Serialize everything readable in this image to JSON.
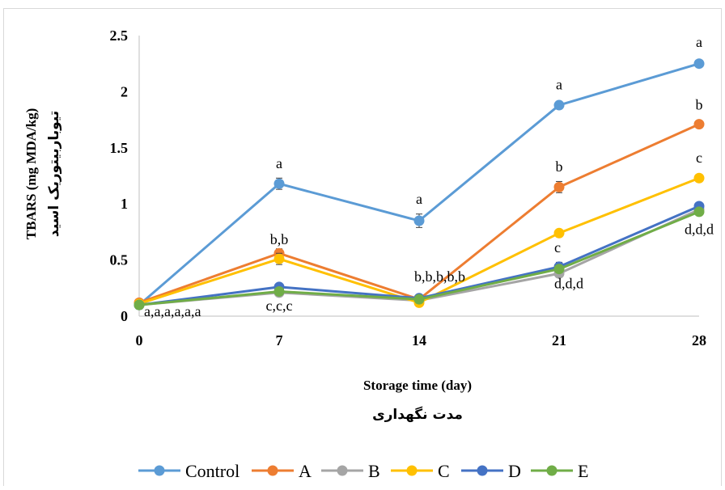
{
  "chart_data": {
    "type": "line",
    "x": [
      0,
      7,
      14,
      21,
      28
    ],
    "categories": [
      "0",
      "7",
      "14",
      "21",
      "28"
    ],
    "ylim": [
      0,
      2.5
    ],
    "yticks": [
      "0",
      "0.5",
      "1",
      "1.5",
      "2",
      "2.5"
    ],
    "xlabel": "Storage time (day)",
    "xlabel_fa": "مدت نگهداری",
    "ylabel": "TBARS (mg MDA/kg)",
    "ylabel_fa": "تیوباربیتوریک اسید",
    "grid": false,
    "legend_position": "bottom",
    "series": [
      {
        "name": "Control",
        "color": "#5B9BD5",
        "values": [
          0.1,
          1.18,
          0.85,
          1.88,
          2.25
        ],
        "errors": [
          0.02,
          0.05,
          0.06,
          0.03,
          0.02
        ]
      },
      {
        "name": "A",
        "color": "#ED7D31",
        "values": [
          0.12,
          0.56,
          0.15,
          1.15,
          1.71
        ],
        "errors": [
          0.02,
          0.04,
          0.03,
          0.05,
          0.02
        ]
      },
      {
        "name": "B",
        "color": "#A5A5A5",
        "values": [
          0.1,
          0.21,
          0.14,
          0.38,
          0.95
        ],
        "errors": [
          0.02,
          0.03,
          0.02,
          0.03,
          0.02
        ]
      },
      {
        "name": "C",
        "color": "#FFC000",
        "values": [
          0.11,
          0.51,
          0.12,
          0.74,
          1.23
        ],
        "errors": [
          0.02,
          0.05,
          0.03,
          0.03,
          0.02
        ]
      },
      {
        "name": "D",
        "color": "#4472C4",
        "values": [
          0.1,
          0.26,
          0.16,
          0.44,
          0.98
        ],
        "errors": [
          0.02,
          0.02,
          0.02,
          0.04,
          0.02
        ]
      },
      {
        "name": "E",
        "color": "#70AD47",
        "values": [
          0.1,
          0.22,
          0.15,
          0.42,
          0.93
        ],
        "errors": [
          0.02,
          0.02,
          0.02,
          0.03,
          0.02
        ]
      }
    ],
    "annotations": [
      {
        "text": "a,a,a,a,a,a",
        "x": 0,
        "y": 0.0,
        "anchor": "start"
      },
      {
        "text": "a",
        "x": 7,
        "y": 1.32,
        "anchor": "middle"
      },
      {
        "text": "b,b",
        "x": 7,
        "y": 0.64,
        "anchor": "middle"
      },
      {
        "text": "c,c,c",
        "x": 7,
        "y": 0.05,
        "anchor": "middle"
      },
      {
        "text": "a",
        "x": 14,
        "y": 1.0,
        "anchor": "middle"
      },
      {
        "text": "b,b,b,b,b",
        "x": 14,
        "y": 0.31,
        "anchor": "start"
      },
      {
        "text": "a",
        "x": 21,
        "y": 2.02,
        "anchor": "middle"
      },
      {
        "text": "b",
        "x": 21,
        "y": 1.29,
        "anchor": "middle"
      },
      {
        "text": "c",
        "x": 21,
        "y": 0.57,
        "anchor": "start"
      },
      {
        "text": "d,d,d",
        "x": 21,
        "y": 0.25,
        "anchor": "start"
      },
      {
        "text": "a",
        "x": 28,
        "y": 2.4,
        "anchor": "middle"
      },
      {
        "text": "b",
        "x": 28,
        "y": 1.84,
        "anchor": "middle"
      },
      {
        "text": "c",
        "x": 28,
        "y": 1.37,
        "anchor": "middle"
      },
      {
        "text": "d,d,d",
        "x": 28,
        "y": 0.73,
        "anchor": "middle"
      }
    ]
  }
}
